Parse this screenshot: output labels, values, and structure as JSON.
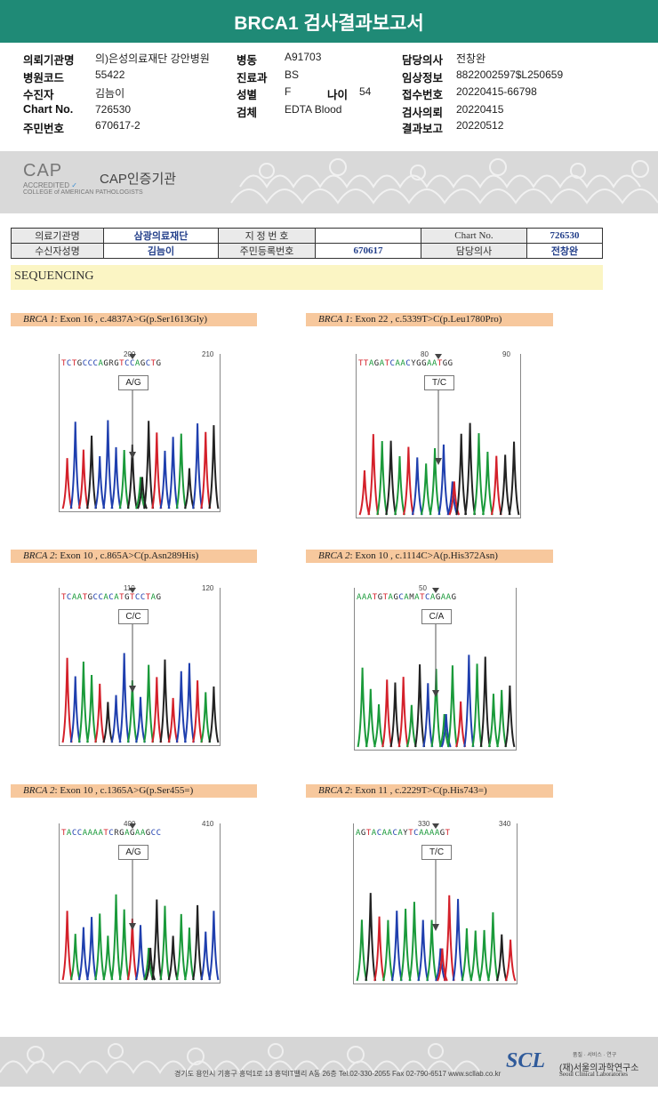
{
  "title": "BRCA1 검사결과보고서",
  "info": {
    "left": [
      {
        "label": "의뢰기관명",
        "value": "의)은성의료재단 강안병원"
      },
      {
        "label": "병원코드",
        "value": "55422"
      },
      {
        "label": "수진자",
        "value": "김늠이"
      },
      {
        "label": "Chart No.",
        "value": "726530"
      },
      {
        "label": "주민번호",
        "value": "670617-2"
      }
    ],
    "middle": [
      {
        "label": "병동",
        "value": "A91703"
      },
      {
        "label": "진료과",
        "value": "BS"
      },
      {
        "label": "성별",
        "value": "F"
      },
      {
        "label": "검체",
        "value": "EDTA Blood"
      }
    ],
    "age_label": "나이",
    "age_value": "54",
    "right": [
      {
        "label": "담당의사",
        "value": "전창완"
      },
      {
        "label": "임상정보",
        "value": "8822002597$L250659"
      },
      {
        "label": "접수번호",
        "value": "20220415-66798"
      },
      {
        "label": "검사의뢰",
        "value": "20220415"
      },
      {
        "label": "결과보고",
        "value": "20220512"
      }
    ]
  },
  "cap": {
    "logo": "CAP",
    "accredited": "ACCREDITED",
    "college": "COLLEGE of AMERICAN PATHOLOGISTS",
    "title": "CAP인증기관"
  },
  "patient_table": {
    "row1": [
      "의료기관명",
      "삼광의료재단",
      "지 정 번 호",
      "",
      "Chart No.",
      "726530"
    ],
    "row2": [
      "수신자성명",
      "김늠이",
      "주민등록번호",
      "670617",
      "담당의사",
      "전창완"
    ]
  },
  "section_title": "SEQUENCING",
  "variants": [
    {
      "gene": "BRCA 1",
      "desc": ": Exon 16 , c.4837A>G(p.Ser1613Gly)",
      "pos1": "200",
      "pos2": "210",
      "seq": "TCTGCCCAGRGTCCAGCTG",
      "genotype": "A/G"
    },
    {
      "gene": "BRCA 1",
      "desc": ": Exon 22 , c.5339T>C(p.Leu1780Pro)",
      "pos1": "80",
      "pos2": "90",
      "seq": "TTAGATCAACYGGAATGG",
      "genotype": "T/C"
    },
    {
      "gene": "BRCA 2",
      "desc": ": Exon 10 , c.865A>C(p.Asn289His)",
      "pos1": "110",
      "pos2": "120",
      "seq": "TCAATGCCACATGTCCTAG",
      "genotype": "C/C"
    },
    {
      "gene": "BRCA 2",
      "desc": ": Exon 10 , c.1114C>A(p.His372Asn)",
      "pos1": "50",
      "pos2": "",
      "seq": "AAATGTAGCAMATCAGAAG",
      "genotype": "C/A"
    },
    {
      "gene": "BRCA 2",
      "desc": ": Exon 10 , c.1365A>G(p.Ser455=)",
      "pos1": "400",
      "pos2": "410",
      "seq": "TACCAAAATCRGAGAAGCC",
      "genotype": "A/G"
    },
    {
      "gene": "BRCA 2",
      "desc": ": Exon 11 , c.2229T>C(p.His743=)",
      "pos1": "330",
      "pos2": "340",
      "seq": "AGTACAACAYTCAAAAGT",
      "genotype": "T/C"
    }
  ],
  "footer": {
    "tagline": "품질 · 서비스 · 연구",
    "logo": "SCL",
    "name": "(재)서울의과학연구소",
    "name_en": "Seoul Clinical Laboratories",
    "address": "경기도 용인시 기흥구 흥덕1로 13 흥덕IT밸리 A동 26층  Tel.02-330-2055  Fax 02-790-6517  www.scllab.co.kr"
  },
  "colors": {
    "header": "#1f8a76",
    "A": "#1a9a3a",
    "C": "#1f3fae",
    "G": "#222222",
    "T": "#d4202a",
    "label_bg": "#f7c89d"
  }
}
